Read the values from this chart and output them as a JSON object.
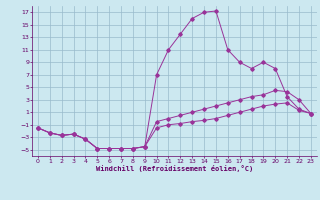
{
  "background_color": "#cce8f0",
  "line_color": "#993399",
  "grid_color": "#99bbcc",
  "xlabel": "Windchill (Refroidissement éolien,°C)",
  "xlabel_color": "#660066",
  "tick_color": "#660066",
  "ylim": [
    -6,
    18
  ],
  "xlim": [
    -0.5,
    23.5
  ],
  "yticks": [
    -5,
    -3,
    -1,
    1,
    3,
    5,
    7,
    9,
    11,
    13,
    15,
    17
  ],
  "xticks": [
    0,
    1,
    2,
    3,
    4,
    5,
    6,
    7,
    8,
    9,
    10,
    11,
    12,
    13,
    14,
    15,
    16,
    17,
    18,
    19,
    20,
    21,
    22,
    23
  ],
  "series1_x": [
    0,
    1,
    2,
    3,
    4,
    5,
    6,
    7,
    8,
    9,
    10,
    11,
    12,
    13,
    14,
    15,
    16,
    17,
    18,
    19,
    20,
    21,
    22,
    23
  ],
  "series1_y": [
    -1.5,
    -2.3,
    -2.7,
    -2.5,
    -3.3,
    -4.8,
    -4.8,
    -4.8,
    -4.8,
    -4.5,
    7.0,
    11.0,
    13.5,
    16.0,
    17.0,
    17.2,
    11.0,
    9.0,
    8.0,
    9.0,
    8.0,
    3.5,
    1.5,
    0.8
  ],
  "series2_x": [
    0,
    1,
    2,
    3,
    4,
    5,
    6,
    7,
    8,
    9,
    10,
    11,
    12,
    13,
    14,
    15,
    16,
    17,
    18,
    19,
    20,
    21,
    22,
    23
  ],
  "series2_y": [
    -1.5,
    -2.3,
    -2.7,
    -2.5,
    -3.3,
    -4.8,
    -4.8,
    -4.8,
    -4.8,
    -4.5,
    -0.5,
    0.0,
    0.5,
    1.0,
    1.5,
    2.0,
    2.5,
    3.0,
    3.5,
    3.8,
    4.5,
    4.3,
    3.0,
    0.8
  ],
  "series3_x": [
    0,
    1,
    2,
    3,
    4,
    5,
    6,
    7,
    8,
    9,
    10,
    11,
    12,
    13,
    14,
    15,
    16,
    17,
    18,
    19,
    20,
    21,
    22,
    23
  ],
  "series3_y": [
    -1.5,
    -2.3,
    -2.7,
    -2.5,
    -3.3,
    -4.8,
    -4.8,
    -4.8,
    -4.8,
    -4.5,
    -1.5,
    -1.0,
    -0.8,
    -0.5,
    -0.3,
    0.0,
    0.5,
    1.0,
    1.5,
    2.0,
    2.3,
    2.5,
    1.3,
    0.8
  ]
}
